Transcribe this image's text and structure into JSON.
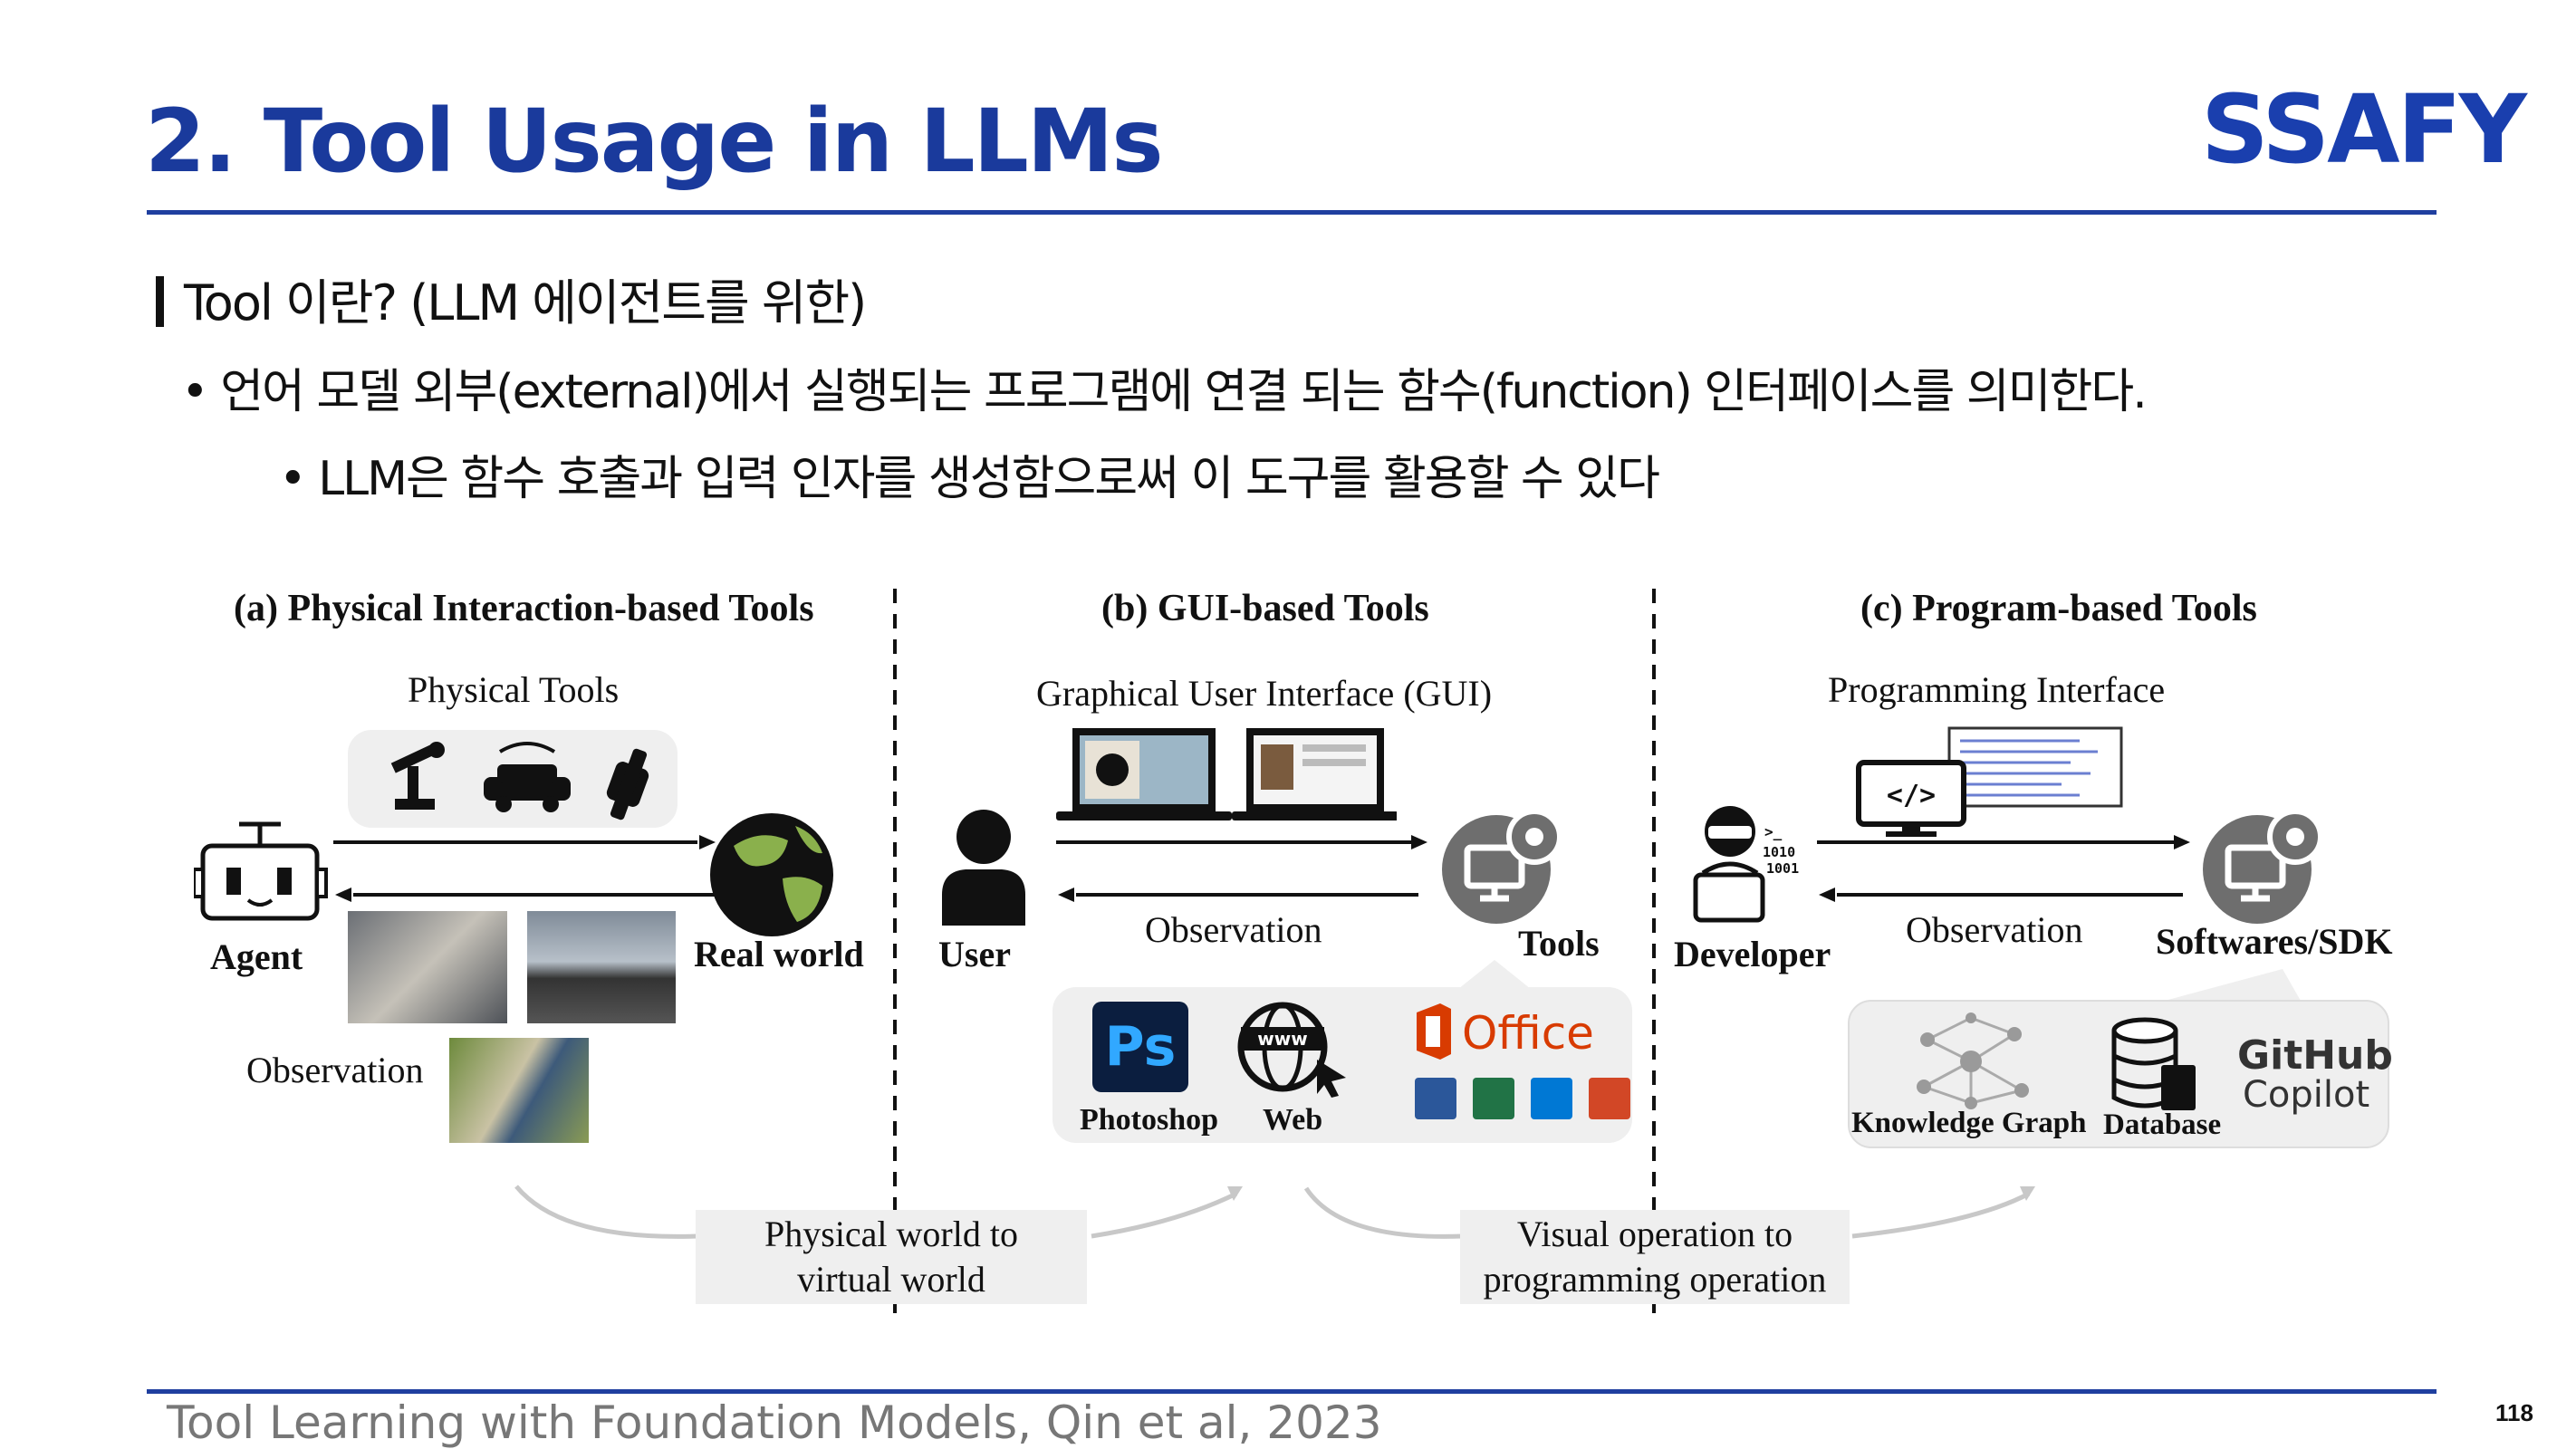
{
  "slide": {
    "title": "2. Tool Usage in LLMs",
    "logo": "SSAFY",
    "section": "Tool 이란? (LLM 에이전트를 위한)",
    "bullet1": "• 언어 모델 외부(external)에서 실행되는 프로그램에 연결 되는 함수(function) 인터페이스를 의미한다.",
    "bullet2": "• LLM은 함수 호출과 입력 인자를 생성함으로써 이 도구를 활용할 수 있다",
    "footer": "Tool Learning with Foundation Models, Qin et al, 2023",
    "page_number": "118"
  },
  "figure": {
    "panel_a": {
      "title": "(a) Physical Interaction-based Tools",
      "tools_label": "Physical  Tools",
      "agent_label": "Agent",
      "world_label": "Real world",
      "observation_label": "Observation"
    },
    "panel_b": {
      "title": "(b) GUI-based Tools",
      "gui_label": "Graphical User Interface (GUI)",
      "user_label": "User",
      "observation_label": "Observation",
      "tools_label": "Tools",
      "photoshop_label": "Photoshop",
      "ps_text": "Ps",
      "web_label": "Web",
      "www_text": "www",
      "office_text": "Office"
    },
    "panel_c": {
      "title": "(c) Program-based Tools",
      "interface_label": "Programming Interface",
      "developer_label": "Developer",
      "observation_label": "Observation",
      "sdk_label": "Softwares/SDK",
      "kg_label": "Knowledge Graph",
      "db_label": "Database",
      "github_label": "GitHub",
      "copilot_label": "Copilot",
      "code_tag": "</>",
      "binary": "1010\n1001"
    },
    "caption_left": "Physical world to\nvirtual world",
    "caption_right": "Visual operation to\nprogramming operation"
  },
  "colors": {
    "title_blue": "#1a3a9c",
    "rule_blue": "#1f3f9f",
    "panel_gray": "#efefef",
    "photoshop_blue": "#0b1e3f",
    "photoshop_text": "#31a8ff",
    "office_red": "#d83b01",
    "globe_green": "#8ab04c"
  }
}
